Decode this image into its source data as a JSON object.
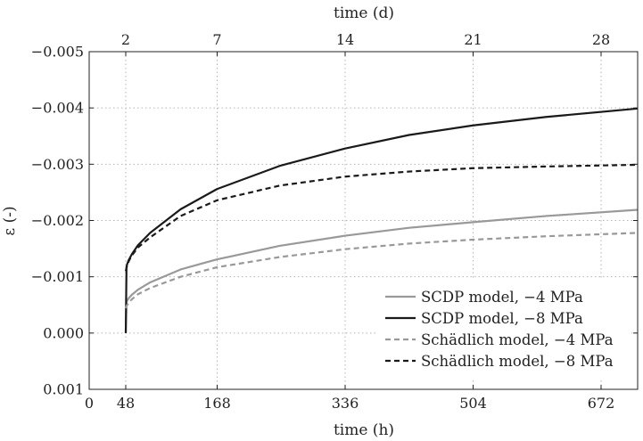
{
  "chart_data": {
    "type": "line",
    "xlabel_bottom": "time (h)",
    "xlabel_top": "time (d)",
    "ylabel": "ε (-)",
    "xlim": [
      0,
      720
    ],
    "ylim": [
      0.001,
      -0.005
    ],
    "y_inverted": true,
    "grid": "dotted",
    "legend_position": "bottom-right",
    "x_ticks_bottom": [
      0,
      48,
      168,
      336,
      504,
      672
    ],
    "x_ticks_top": [
      {
        "hours": 48,
        "label": "2"
      },
      {
        "hours": 168,
        "label": "7"
      },
      {
        "hours": 336,
        "label": "14"
      },
      {
        "hours": 504,
        "label": "21"
      },
      {
        "hours": 672,
        "label": "28"
      }
    ],
    "y_ticks": [
      {
        "value": -0.005,
        "label": "−0.005"
      },
      {
        "value": -0.004,
        "label": "−0.004"
      },
      {
        "value": -0.003,
        "label": "−0.003"
      },
      {
        "value": -0.002,
        "label": "−0.002"
      },
      {
        "value": -0.001,
        "label": "−0.001"
      },
      {
        "value": 0.0,
        "label": "0.000"
      },
      {
        "value": 0.001,
        "label": "0.001"
      }
    ],
    "series": [
      {
        "name": "SCDP model, −4 MPa",
        "color": "#999999",
        "dash": "solid",
        "x": [
          48,
          49,
          50,
          52,
          56,
          64,
          80,
          120,
          168,
          250,
          336,
          420,
          504,
          600,
          720
        ],
        "y": [
          0.0,
          -0.00055,
          -0.00058,
          -0.00062,
          -0.00068,
          -0.00077,
          -0.0009,
          -0.00113,
          -0.00131,
          -0.00155,
          -0.00173,
          -0.00187,
          -0.00197,
          -0.00208,
          -0.00219
        ]
      },
      {
        "name": "SCDP model, −8 MPa",
        "color": "#1a1a1a",
        "dash": "solid",
        "x": [
          48,
          49,
          50,
          52,
          56,
          64,
          80,
          120,
          168,
          250,
          336,
          420,
          504,
          600,
          720
        ],
        "y": [
          0.0,
          -0.00118,
          -0.00123,
          -0.0013,
          -0.0014,
          -0.00156,
          -0.00178,
          -0.0022,
          -0.00256,
          -0.00297,
          -0.00328,
          -0.00352,
          -0.00369,
          -0.00384,
          -0.00399
        ]
      },
      {
        "name": "Schädlich model, −4 MPa",
        "color": "#999999",
        "dash": "dashed",
        "x": [
          48,
          49,
          50,
          52,
          56,
          64,
          80,
          120,
          168,
          250,
          336,
          420,
          504,
          600,
          720
        ],
        "y": [
          -0.00044,
          -0.00048,
          -0.0005,
          -0.00054,
          -0.0006,
          -0.00069,
          -0.0008,
          -0.001,
          -0.00117,
          -0.00135,
          -0.00149,
          -0.00159,
          -0.00166,
          -0.00172,
          -0.00178
        ]
      },
      {
        "name": "Schädlich model, −8 MPa",
        "color": "#1a1a1a",
        "dash": "dashed",
        "x": [
          48,
          49,
          50,
          52,
          56,
          64,
          80,
          120,
          168,
          250,
          336,
          420,
          504,
          600,
          720
        ],
        "y": [
          -0.0011,
          -0.00116,
          -0.0012,
          -0.00128,
          -0.00138,
          -0.00152,
          -0.0017,
          -0.00208,
          -0.00236,
          -0.00262,
          -0.00278,
          -0.00287,
          -0.00293,
          -0.00296,
          -0.00299
        ]
      }
    ]
  }
}
